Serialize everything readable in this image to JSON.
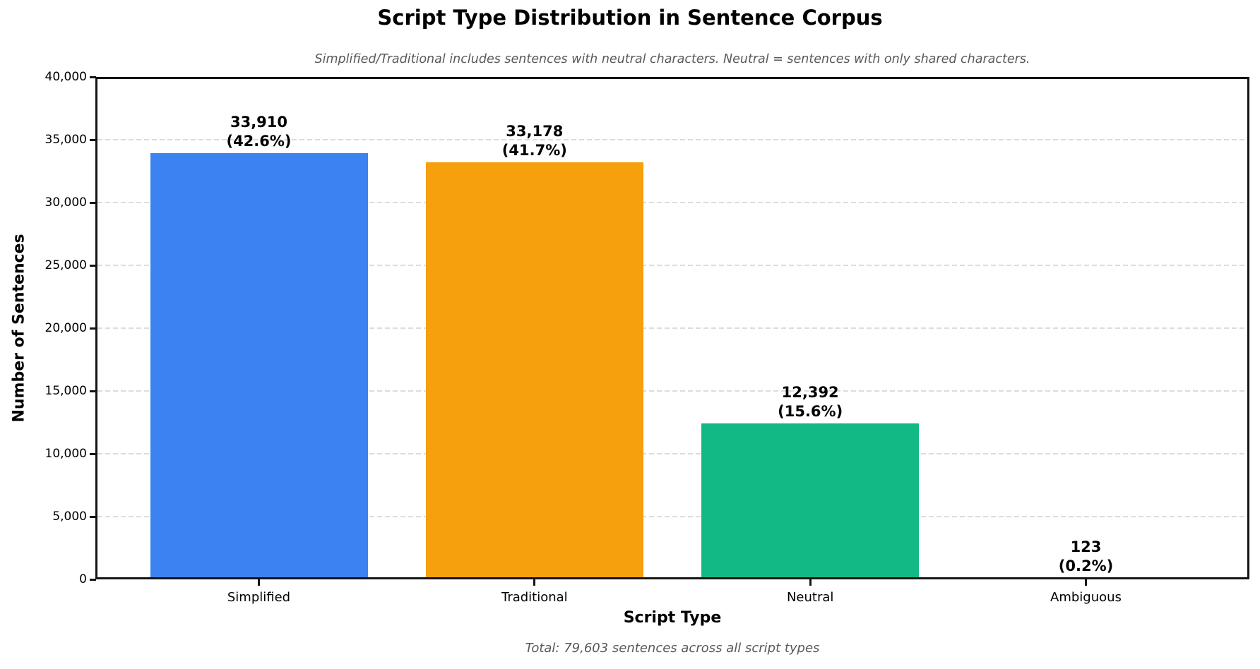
{
  "chart_data": {
    "type": "bar",
    "title": "Script Type Distribution in Sentence Corpus",
    "subtitle": "Simplified/Traditional includes sentences with neutral characters. Neutral = sentences with only shared characters.",
    "xlabel": "Script Type",
    "ylabel": "Number of Sentences",
    "footnote": "Total: 79,603 sentences across all script types",
    "total_sentences": 79603,
    "ylim": [
      0,
      40000
    ],
    "ytick_interval": 5000,
    "yticks": [
      "0",
      "5,000",
      "10,000",
      "15,000",
      "20,000",
      "25,000",
      "30,000",
      "35,000",
      "40,000"
    ],
    "grid": {
      "axis": "y",
      "style": "dashed",
      "color": "#dcdcdc"
    },
    "legend": "none",
    "categories": [
      "Simplified",
      "Traditional",
      "Neutral",
      "Ambiguous"
    ],
    "values": [
      33910,
      33178,
      12392,
      123
    ],
    "bars": [
      {
        "category": "Simplified",
        "value": 33910,
        "value_label": "33,910",
        "pct_label": "(42.6%)",
        "percent": 42.6,
        "color": "#3c82f0"
      },
      {
        "category": "Traditional",
        "value": 33178,
        "value_label": "33,178",
        "pct_label": "(41.7%)",
        "percent": 41.7,
        "color": "#f5a00c"
      },
      {
        "category": "Neutral",
        "value": 12392,
        "value_label": "12,392",
        "pct_label": "(15.6%)",
        "percent": 15.6,
        "color": "#12b984"
      },
      {
        "category": "Ambiguous",
        "value": 123,
        "value_label": "123",
        "pct_label": "(0.2%)",
        "percent": 0.2,
        "color": "#fa5252"
      }
    ]
  }
}
